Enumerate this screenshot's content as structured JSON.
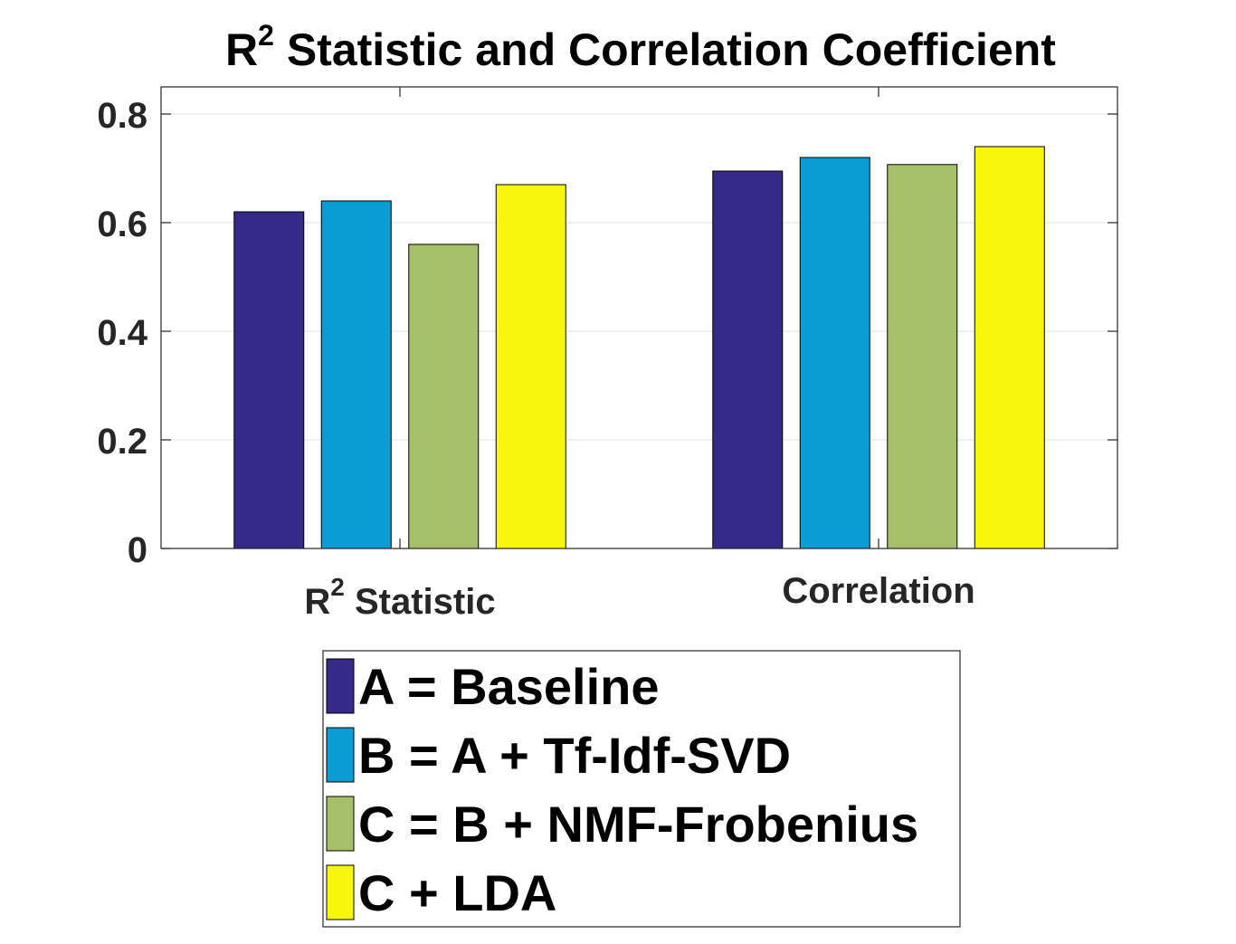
{
  "chart_data": {
    "type": "bar",
    "title": {
      "base": "R",
      "superscript": "2",
      "rest": " Statistic and Correlation Coefficient"
    },
    "categories": [
      {
        "base": "R",
        "superscript": "2",
        "rest": " Statistic"
      },
      {
        "base": "Correlation",
        "superscript": "",
        "rest": ""
      }
    ],
    "series": [
      {
        "name": "A = Baseline",
        "color": "#352a87",
        "values": [
          0.62,
          0.695
        ]
      },
      {
        "name": "B = A + Tf-Idf-SVD",
        "color": "#0a9dd3",
        "values": [
          0.64,
          0.72
        ]
      },
      {
        "name": "C = B + NMF-Frobenius",
        "color": "#a6bf69",
        "values": [
          0.56,
          0.707
        ]
      },
      {
        "name": "C + LDA",
        "color": "#f7f70e",
        "values": [
          0.67,
          0.74
        ]
      }
    ],
    "ylim": [
      0,
      0.85
    ],
    "yticks": [
      0,
      0.2,
      0.4,
      0.6,
      0.8
    ],
    "ytick_labels": [
      "0",
      "0.2",
      "0.4",
      "0.6",
      "0.8"
    ],
    "grid": true,
    "legend_position": "bottom"
  }
}
